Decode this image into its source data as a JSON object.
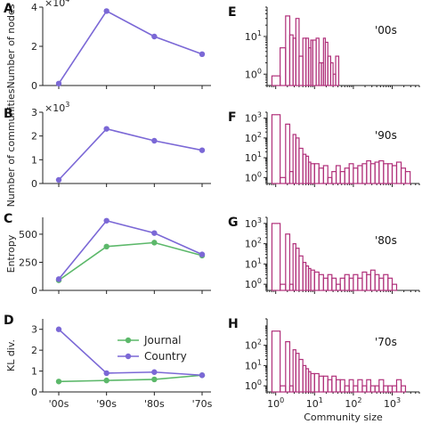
{
  "colors": {
    "country": "#7b68d6",
    "journal": "#5cb86a",
    "hist": "#b0307a"
  },
  "chart_data": [
    {
      "id": "A",
      "panel_label": "A",
      "type": "line",
      "ylabel": "Number of nodes",
      "offset_label": "×10",
      "offset_exp": "4",
      "categories": [
        "'00s",
        "'90s",
        "'80s",
        "'70s"
      ],
      "ylim": [
        0,
        4
      ],
      "yticks": [
        "0",
        "2",
        "4"
      ],
      "series": [
        {
          "key": "country",
          "values": [
            0.1,
            3.8,
            2.5,
            1.6
          ]
        }
      ]
    },
    {
      "id": "B",
      "panel_label": "B",
      "type": "line",
      "ylabel": "Number of communities",
      "offset_label": "×10",
      "offset_exp": "3",
      "categories": [
        "'00s",
        "'90s",
        "'80s",
        "'70s"
      ],
      "ylim": [
        0,
        3
      ],
      "yticks": [
        "0",
        "1",
        "2",
        "3"
      ],
      "series": [
        {
          "key": "country",
          "values": [
            0.15,
            2.3,
            1.8,
            1.4
          ]
        }
      ]
    },
    {
      "id": "C",
      "panel_label": "C",
      "type": "line",
      "ylabel": "Entropy",
      "categories": [
        "'00s",
        "'90s",
        "'80s",
        "'70s"
      ],
      "ylim": [
        0,
        650
      ],
      "yticks": [
        "0",
        "250",
        "500"
      ],
      "series": [
        {
          "key": "journal",
          "values": [
            90,
            390,
            425,
            310
          ]
        },
        {
          "key": "country",
          "values": [
            100,
            620,
            510,
            320
          ]
        }
      ]
    },
    {
      "id": "D",
      "panel_label": "D",
      "type": "line",
      "ylabel": "KL div.",
      "categories": [
        "'00s",
        "'90s",
        "'80s",
        "'70s"
      ],
      "xticklabels": [
        "'00s",
        "'90s",
        "'80s",
        "'70s"
      ],
      "ylim": [
        0,
        3.5
      ],
      "yticks": [
        "0",
        "1",
        "2",
        "3"
      ],
      "series": [
        {
          "key": "journal",
          "name": "Journal",
          "values": [
            0.5,
            0.55,
            0.6,
            0.8
          ]
        },
        {
          "key": "country",
          "name": "Country",
          "values": [
            3.0,
            0.9,
            0.95,
            0.8
          ]
        }
      ],
      "legend": "top-right"
    },
    {
      "id": "E",
      "panel_label": "E",
      "type": "histogram",
      "annotation": "'00s",
      "xscale": "log",
      "yscale": "log",
      "xlim": [
        0.6,
        5000
      ],
      "ylim": [
        0.5,
        60
      ],
      "yticks": [
        {
          "b": "10",
          "e": "0",
          "v": 1
        },
        {
          "b": "10",
          "e": "1",
          "v": 10
        }
      ],
      "show_xlabels": false,
      "bins": [
        [
          0.8,
          1.3,
          0.9
        ],
        [
          1.3,
          1.8,
          5
        ],
        [
          1.8,
          2.3,
          35
        ],
        [
          2.3,
          2.8,
          11
        ],
        [
          2.8,
          3.3,
          9
        ],
        [
          3.3,
          4,
          30
        ],
        [
          4,
          5,
          3
        ],
        [
          5,
          6,
          9
        ],
        [
          6,
          7,
          9
        ],
        [
          7,
          8,
          5
        ],
        [
          8,
          9,
          8
        ],
        [
          9,
          11,
          8
        ],
        [
          11,
          13,
          9
        ],
        [
          13,
          15,
          2
        ],
        [
          15,
          17,
          2
        ],
        [
          17,
          19,
          9
        ],
        [
          19,
          22,
          7
        ],
        [
          22,
          26,
          3
        ],
        [
          26,
          30,
          2
        ],
        [
          30,
          35,
          1
        ],
        [
          35,
          42,
          3
        ]
      ]
    },
    {
      "id": "F",
      "panel_label": "F",
      "type": "histogram",
      "annotation": "'90s",
      "xscale": "log",
      "yscale": "log",
      "xlim": [
        0.6,
        5000
      ],
      "ylim": [
        0.5,
        2000
      ],
      "yticks": [
        {
          "b": "10",
          "e": "0",
          "v": 1
        },
        {
          "b": "10",
          "e": "1",
          "v": 10
        },
        {
          "b": "10",
          "e": "2",
          "v": 100
        },
        {
          "b": "10",
          "e": "3",
          "v": 1000
        }
      ],
      "show_xlabels": false,
      "bins": [
        [
          0.8,
          1.3,
          1500
        ],
        [
          1.3,
          1.8,
          1
        ],
        [
          1.8,
          2.3,
          500
        ],
        [
          2.3,
          2.8,
          2
        ],
        [
          2.8,
          3.3,
          150
        ],
        [
          3.3,
          4,
          100
        ],
        [
          4,
          5,
          30
        ],
        [
          5,
          6,
          15
        ],
        [
          6,
          7,
          12
        ],
        [
          7,
          8,
          6
        ],
        [
          8,
          10,
          5
        ],
        [
          10,
          13,
          5
        ],
        [
          13,
          17,
          3
        ],
        [
          17,
          22,
          4
        ],
        [
          22,
          28,
          1
        ],
        [
          28,
          36,
          2
        ],
        [
          36,
          46,
          4
        ],
        [
          46,
          60,
          2
        ],
        [
          60,
          78,
          3
        ],
        [
          78,
          100,
          5
        ],
        [
          100,
          130,
          3
        ],
        [
          130,
          170,
          4
        ],
        [
          170,
          220,
          5
        ],
        [
          220,
          280,
          7
        ],
        [
          280,
          360,
          5
        ],
        [
          360,
          460,
          6
        ],
        [
          460,
          600,
          7
        ],
        [
          600,
          780,
          5
        ],
        [
          780,
          1000,
          5
        ],
        [
          1000,
          1300,
          4
        ],
        [
          1300,
          1700,
          6
        ],
        [
          1700,
          2200,
          3
        ],
        [
          2200,
          2900,
          2
        ]
      ]
    },
    {
      "id": "G",
      "panel_label": "G",
      "type": "histogram",
      "annotation": "'80s",
      "xscale": "log",
      "yscale": "log",
      "xlim": [
        0.6,
        5000
      ],
      "ylim": [
        0.5,
        2000
      ],
      "yticks": [
        {
          "b": "10",
          "e": "0",
          "v": 1
        },
        {
          "b": "10",
          "e": "1",
          "v": 10
        },
        {
          "b": "10",
          "e": "2",
          "v": 100
        },
        {
          "b": "10",
          "e": "3",
          "v": 1000
        }
      ],
      "show_xlabels": false,
      "bins": [
        [
          0.8,
          1.3,
          1000
        ],
        [
          1.3,
          1.8,
          1
        ],
        [
          1.8,
          2.3,
          300
        ],
        [
          2.3,
          2.8,
          1
        ],
        [
          2.8,
          3.3,
          100
        ],
        [
          3.3,
          4,
          60
        ],
        [
          4,
          5,
          25
        ],
        [
          5,
          6,
          12
        ],
        [
          6,
          7,
          8
        ],
        [
          7,
          8,
          6
        ],
        [
          8,
          10,
          5
        ],
        [
          10,
          13,
          4
        ],
        [
          13,
          17,
          3
        ],
        [
          17,
          22,
          2
        ],
        [
          22,
          28,
          3
        ],
        [
          28,
          36,
          2
        ],
        [
          36,
          46,
          1
        ],
        [
          46,
          60,
          2
        ],
        [
          60,
          78,
          3
        ],
        [
          78,
          100,
          2
        ],
        [
          100,
          130,
          3
        ],
        [
          130,
          170,
          2
        ],
        [
          170,
          220,
          4
        ],
        [
          220,
          280,
          3
        ],
        [
          280,
          360,
          5
        ],
        [
          360,
          460,
          3
        ],
        [
          460,
          600,
          2
        ],
        [
          600,
          780,
          3
        ],
        [
          780,
          1000,
          2
        ],
        [
          1000,
          1300,
          1
        ]
      ]
    },
    {
      "id": "H",
      "panel_label": "H",
      "type": "histogram",
      "annotation": "'70s",
      "xscale": "log",
      "yscale": "log",
      "xlim": [
        0.6,
        5000
      ],
      "ylim": [
        0.5,
        2000
      ],
      "yticks": [
        {
          "b": "10",
          "e": "0",
          "v": 1
        },
        {
          "b": "10",
          "e": "1",
          "v": 10
        },
        {
          "b": "10",
          "e": "2",
          "v": 100
        }
      ],
      "show_xlabels": true,
      "xticks": [
        {
          "b": "10",
          "e": "0",
          "v": 1
        },
        {
          "b": "10",
          "e": "1",
          "v": 10
        },
        {
          "b": "10",
          "e": "2",
          "v": 100
        },
        {
          "b": "10",
          "e": "3",
          "v": 1000
        }
      ],
      "xlabel": "Community size",
      "bins": [
        [
          0.8,
          1.3,
          500
        ],
        [
          1.3,
          1.8,
          1
        ],
        [
          1.8,
          2.3,
          150
        ],
        [
          2.3,
          2.8,
          1
        ],
        [
          2.8,
          3.3,
          60
        ],
        [
          3.3,
          4,
          40
        ],
        [
          4,
          5,
          20
        ],
        [
          5,
          6,
          10
        ],
        [
          6,
          7,
          7
        ],
        [
          7,
          8,
          5
        ],
        [
          8,
          10,
          4
        ],
        [
          10,
          13,
          4
        ],
        [
          13,
          17,
          3
        ],
        [
          17,
          22,
          3
        ],
        [
          22,
          28,
          2
        ],
        [
          28,
          36,
          3
        ],
        [
          36,
          46,
          2
        ],
        [
          46,
          60,
          2
        ],
        [
          60,
          78,
          1
        ],
        [
          78,
          100,
          2
        ],
        [
          100,
          130,
          1
        ],
        [
          130,
          170,
          2
        ],
        [
          170,
          220,
          1
        ],
        [
          220,
          280,
          2
        ],
        [
          280,
          360,
          1
        ],
        [
          360,
          460,
          1
        ],
        [
          460,
          600,
          2
        ],
        [
          600,
          780,
          1
        ],
        [
          780,
          1000,
          1
        ],
        [
          1000,
          1300,
          1
        ],
        [
          1300,
          1700,
          2
        ],
        [
          1700,
          2200,
          1
        ]
      ]
    }
  ]
}
